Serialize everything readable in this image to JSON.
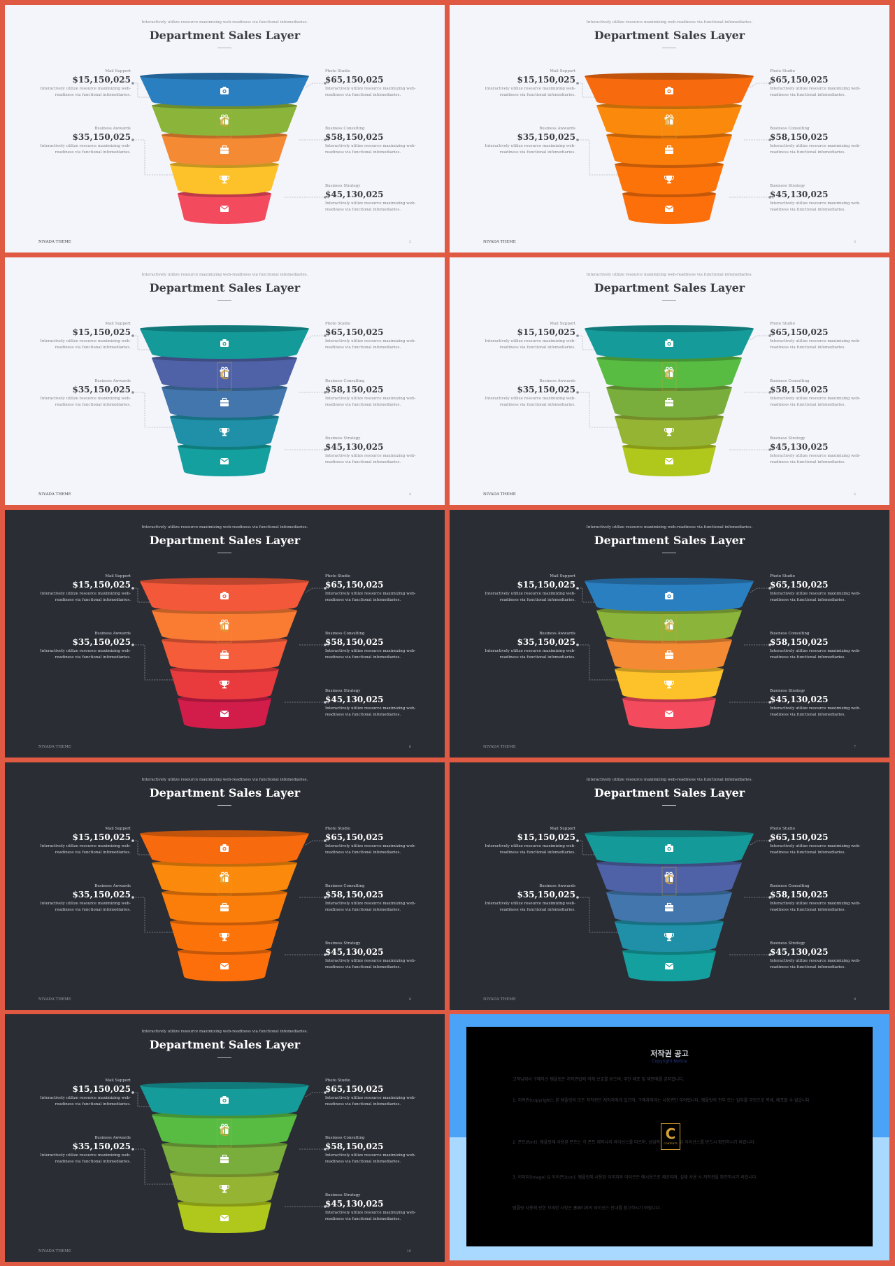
{
  "common": {
    "subtitle": "Interactively utilize resource maximizing web-readiness via functional infomediaries.",
    "title": "Department Sales Layer",
    "footer": "NIVADA THEME",
    "left_callouts": [
      {
        "label": "Mail Support",
        "value": "$15,150,025",
        "desc": "Interactively utilize resource maximizing web-readiness via functional infomediaries."
      },
      {
        "label": "Business Awwards",
        "value": "$35,150,025",
        "desc": "Interactively utilize resource maximizing web-readiness via functional infomediaries."
      }
    ],
    "right_callouts": [
      {
        "label": "Photo Studio",
        "value": "$65,150,025",
        "desc": "Interactively utilize resource maximizing web-readiness via functional infomediaries."
      },
      {
        "label": "Business Consulting",
        "value": "$58,150,025",
        "desc": "Interactively utilize resource maximizing web-readiness via functional infomediaries."
      },
      {
        "label": "Business Strategy",
        "value": "$45,130,025",
        "desc": "Interactively utilize resource maximizing web-readiness via functional infomediaries."
      }
    ],
    "layer_icons": [
      "camera-icon",
      "gift-icon",
      "briefcase-icon",
      "trophy-icon",
      "envelope-icon"
    ]
  },
  "slides": [
    {
      "theme": "light",
      "page": "2",
      "colors": [
        "#2a7fc1",
        "#8ab43a",
        "#f58a35",
        "#fdc22a",
        "#f44a5e"
      ]
    },
    {
      "theme": "light",
      "page": "3",
      "colors": [
        "#f86a0e",
        "#fb8a0c",
        "#fb7d0a",
        "#fc730a",
        "#fd6f0b"
      ]
    },
    {
      "theme": "light",
      "page": "4",
      "colors": [
        "#159a9a",
        "#4f62a7",
        "#4276ad",
        "#1f90a8",
        "#15a0a0"
      ]
    },
    {
      "theme": "light",
      "page": "5",
      "colors": [
        "#169b9b",
        "#58bc43",
        "#79ae3d",
        "#95b434",
        "#b0c71c"
      ]
    },
    {
      "theme": "dark",
      "page": "6",
      "colors": [
        "#f4583a",
        "#fa7b32",
        "#f45c3a",
        "#e93a3d",
        "#d21c4a"
      ]
    },
    {
      "theme": "dark",
      "page": "7",
      "colors": [
        "#2a7fc1",
        "#8ab43a",
        "#f58a35",
        "#fdc22a",
        "#f44a5e"
      ]
    },
    {
      "theme": "dark",
      "page": "8",
      "colors": [
        "#f86a0e",
        "#fb8a0c",
        "#fb7d0a",
        "#fc730a",
        "#fd6f0b"
      ]
    },
    {
      "theme": "dark",
      "page": "9",
      "colors": [
        "#159a9a",
        "#4f62a7",
        "#4276ad",
        "#1f90a8",
        "#15a0a0"
      ]
    },
    {
      "theme": "dark",
      "page": "10",
      "colors": [
        "#169b9b",
        "#58bc43",
        "#79ae3d",
        "#95b434",
        "#b0c71c"
      ]
    }
  ],
  "notice": {
    "title": "저작권 공고",
    "subtitle": "Copyright Notice",
    "paragraphs": [
      "고객님께서 구매하신 템플릿은 저작권법에 의해 보호를 받으며, 무단 배포 및 재판매를 금지합니다.",
      "1. 저작권(copyright): 본 템플릿의 모든 저작권은 저작자에게 있으며, 구매자에게는 사용권만 부여됩니다. 템플릿의 전부 또는 일부를 무단으로 복제, 배포할 수 없습니다.",
      "2. 폰트(font): 템플릿에 사용된 폰트는 각 폰트 제작사의 라이선스를 따르며, 상업적 사용 시 해당 라이선스를 반드시 확인하시기 바랍니다.",
      "3. 이미지(image) & 아이콘(icon): 템플릿에 사용된 이미지와 아이콘은 예시용으로 제공되며, 실제 사용 시 저작권을 확인하시기 바랍니다.",
      "템플릿 사용에 관한 자세한 사항은 홈페이지의 라이선스 안내를 참고하시기 바랍니다."
    ],
    "logo_letter": "C",
    "logo_text": "CONTENTS"
  }
}
